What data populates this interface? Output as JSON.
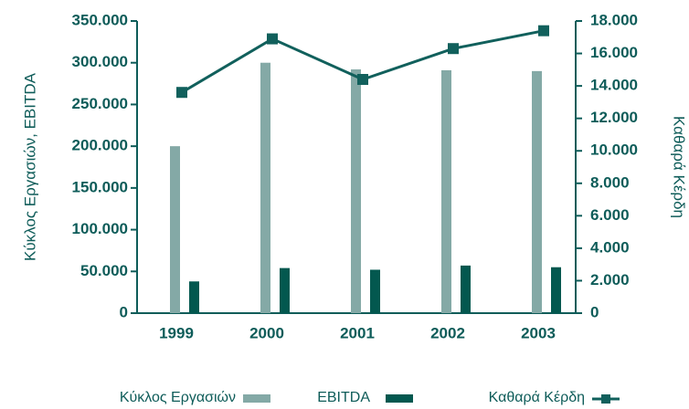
{
  "chart_data": {
    "type": "bar",
    "categories": [
      "1999",
      "2000",
      "2001",
      "2002",
      "2003"
    ],
    "ylabel": "Κύκλος Εργασιών, EBITDA",
    "y2label": "Καθαρά Κέρδη",
    "ylim": [
      0,
      350000
    ],
    "yticks": [
      {
        "value": 0,
        "label": "0"
      },
      {
        "value": 50000,
        "label": "50.000"
      },
      {
        "value": 100000,
        "label": "100.000"
      },
      {
        "value": 150000,
        "label": "150.000"
      },
      {
        "value": 200000,
        "label": "200.000"
      },
      {
        "value": 250000,
        "label": "250.000"
      },
      {
        "value": 300000,
        "label": "300.000"
      },
      {
        "value": 350000,
        "label": "350.000"
      }
    ],
    "y2lim": [
      0,
      18000
    ],
    "y2ticks": [
      {
        "value": 0,
        "label": "0"
      },
      {
        "value": 2000,
        "label": "2.000"
      },
      {
        "value": 4000,
        "label": "4.000"
      },
      {
        "value": 6000,
        "label": "6.000"
      },
      {
        "value": 8000,
        "label": "8.000"
      },
      {
        "value": 10000,
        "label": "10.000"
      },
      {
        "value": 12000,
        "label": "12.000"
      },
      {
        "value": 14000,
        "label": "14.000"
      },
      {
        "value": 16000,
        "label": "16.000"
      },
      {
        "value": 18000,
        "label": "18.000"
      }
    ],
    "series": [
      {
        "name": "Κύκλος Εργασιών",
        "type": "bar",
        "color": "#84a9a6",
        "values": [
          200000,
          300000,
          292000,
          291000,
          290000
        ]
      },
      {
        "name": "EBITDA",
        "type": "bar",
        "color": "#03584f",
        "values": [
          38000,
          54000,
          52000,
          57000,
          55000
        ]
      },
      {
        "name": "Καθαρά Κέρδη",
        "type": "line",
        "axis": "y2",
        "color": "#11605c",
        "values": [
          13600,
          16900,
          14400,
          16300,
          17400
        ]
      }
    ]
  }
}
